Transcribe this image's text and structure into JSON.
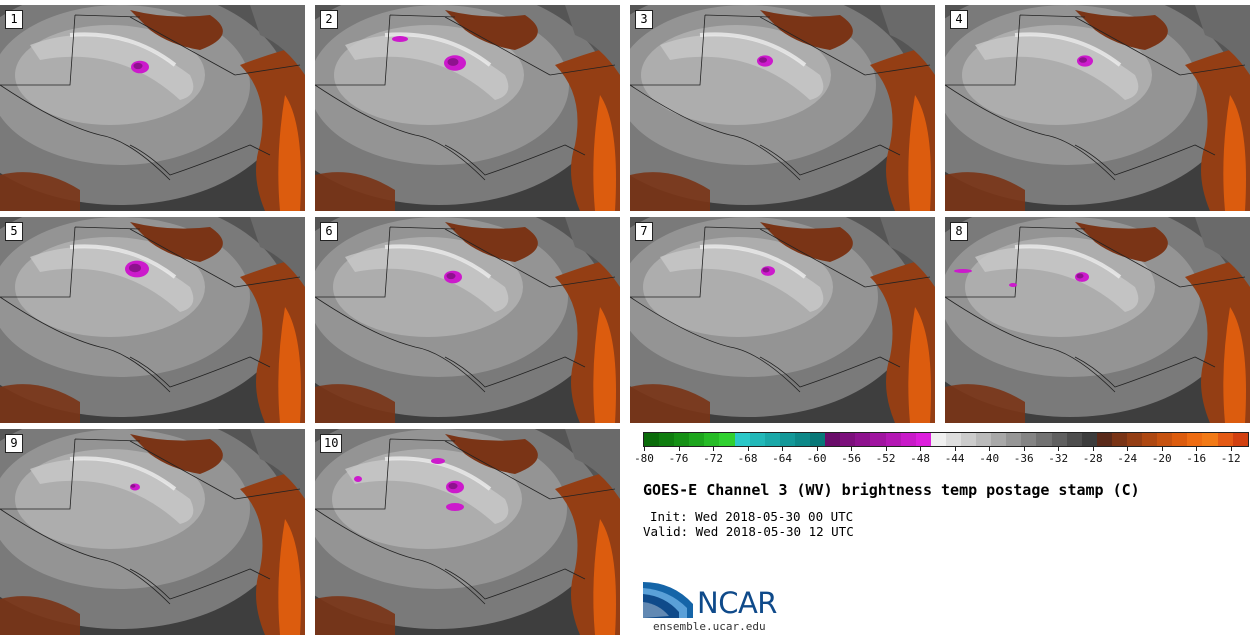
{
  "panels": [
    {
      "label": "1"
    },
    {
      "label": "2"
    },
    {
      "label": "3"
    },
    {
      "label": "4"
    },
    {
      "label": "5"
    },
    {
      "label": "6"
    },
    {
      "label": "7"
    },
    {
      "label": "8"
    },
    {
      "label": "9"
    },
    {
      "label": "10"
    }
  ],
  "colorbar": {
    "ticks": [
      "-80",
      "-76",
      "-72",
      "-68",
      "-64",
      "-60",
      "-56",
      "-52",
      "-48",
      "-44",
      "-40",
      "-36",
      "-32",
      "-28",
      "-24",
      "-20",
      "-16",
      "-12"
    ],
    "colors": [
      "#0a6b0a",
      "#0f7d0f",
      "#159015",
      "#1da51d",
      "#26bb26",
      "#30d030",
      "#2ac8c8",
      "#22b8b8",
      "#1aa8a8",
      "#139898",
      "#0d8888",
      "#087878",
      "#6a0d6a",
      "#7c107c",
      "#8e128e",
      "#a015a0",
      "#b418b4",
      "#c81ac8",
      "#dc1edc",
      "#f0f0f0",
      "#dedede",
      "#cccccc",
      "#bababa",
      "#a8a8a8",
      "#969696",
      "#848484",
      "#727272",
      "#606060",
      "#4e4e4e",
      "#3c3c3c",
      "#5a2a1a",
      "#7a3416",
      "#943e14",
      "#ae4812",
      "#c65210",
      "#dc5c0e",
      "#ee6c12",
      "#f27a16",
      "#e45a14",
      "#d24010"
    ]
  },
  "title": "GOES-E Channel 3 (WV) brightness temp postage stamp (C)",
  "init": "Init: Wed 2018-05-30 00 UTC",
  "valid": "Valid: Wed 2018-05-30 12 UTC",
  "logo_text": "NCAR",
  "site": "ensemble.ucar.edu"
}
